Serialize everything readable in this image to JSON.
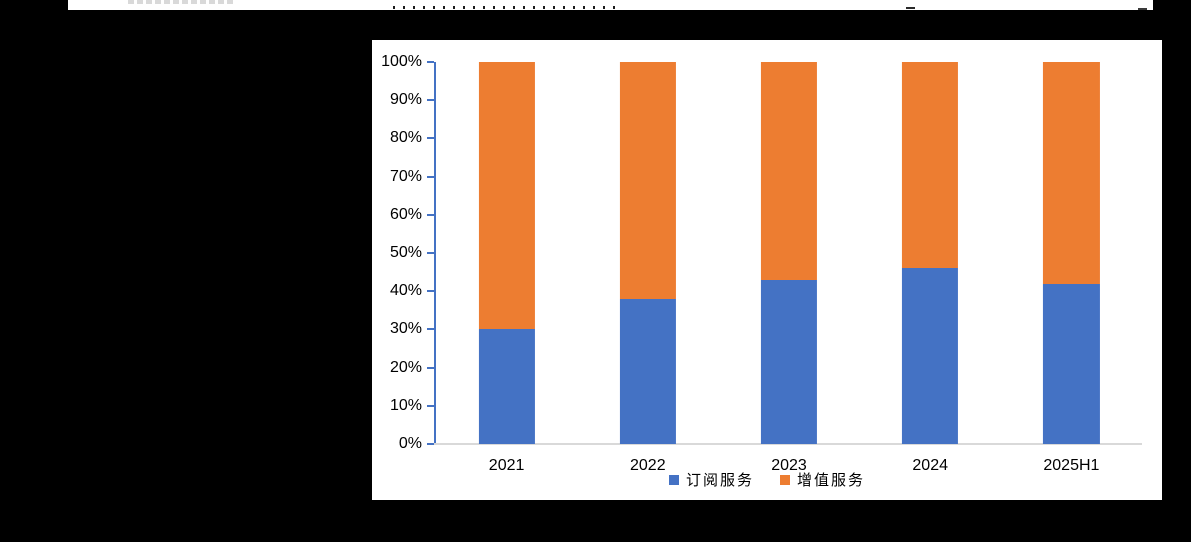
{
  "page": {
    "background_color": "#000000",
    "panel_background": "#FFFFFF"
  },
  "chart_data": {
    "type": "bar",
    "stacked": true,
    "stacked_unit": "percent",
    "title": "",
    "categories": [
      "2021",
      "2022",
      "2023",
      "2024",
      "2025H1"
    ],
    "series": [
      {
        "name": "订阅服务",
        "color": "#4472C4",
        "values": [
          30,
          38,
          43,
          46,
          42
        ]
      },
      {
        "name": "增值服务",
        "color": "#ED7D31",
        "values": [
          70,
          62,
          57,
          54,
          58
        ]
      }
    ],
    "xlabel": "",
    "ylabel": "",
    "ylim": [
      0,
      100
    ],
    "y_tick_step": 10,
    "y_tick_labels": [
      "0%",
      "10%",
      "20%",
      "30%",
      "40%",
      "50%",
      "60%",
      "70%",
      "80%",
      "90%",
      "100%"
    ],
    "grid": false,
    "legend_position": "bottom",
    "colors": {
      "y_axis_line": "#4472C4",
      "x_axis_line": "#D9D9D9",
      "label_text": "#000000"
    }
  }
}
